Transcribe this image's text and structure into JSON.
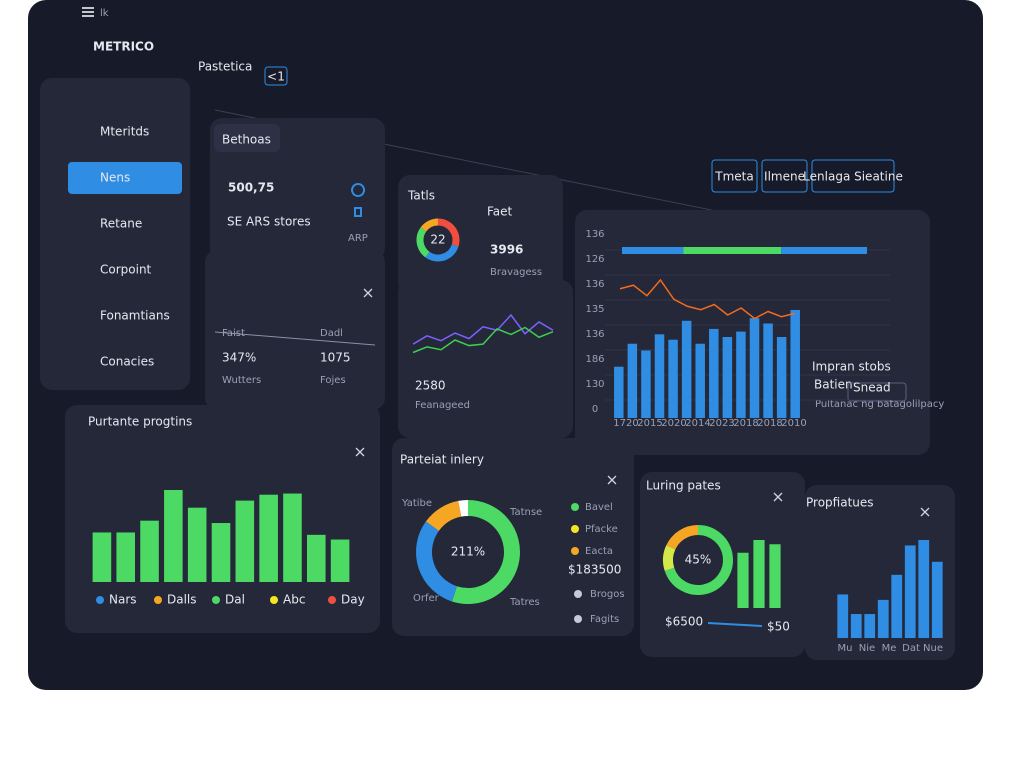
{
  "menu": "lk",
  "brand": "METRICO",
  "tab": "Pastetica",
  "badge": "<1",
  "sidebar": {
    "items": [
      "Mteritds",
      "Nens",
      "Retane",
      "Corpoint",
      "Fonamtians",
      "Conacies"
    ],
    "active": 1
  },
  "buttons": [
    "Tmeta",
    "Ilmene",
    "Lenlaga Sieatine"
  ],
  "card_sales": {
    "tab": "Bethoas",
    "value": "500,75",
    "sub": "SE ARS stores",
    "icon_label": "ARP"
  },
  "card_stats": {
    "items": [
      {
        "label": "Faist",
        "value": "347%",
        "sub": "Wutters"
      },
      {
        "label": "Dadl",
        "value": "1075",
        "sub": "Fojes"
      }
    ]
  },
  "card_totals": {
    "title": "Tatls",
    "title2": "Faet",
    "value": "3996",
    "sub": "Bravagess"
  },
  "card_trend": {
    "value": "2580",
    "sub": "Feanageed"
  },
  "card_main": {
    "title": "Impran stobs",
    "label": "Batien",
    "input": "Snead",
    "note": "Pultanac ng batagolilpacy"
  },
  "card_progress": {
    "title": "Purtante progtins"
  },
  "card_inventory": {
    "title": "Parteiat inlery",
    "amount": "$183500",
    "extra": [
      "Brogos",
      "Fagits"
    ]
  },
  "card_rates": {
    "title": "Luring pates",
    "left": "$6500",
    "right": "$50"
  },
  "card_profiles": {
    "title": "Propfiatues"
  },
  "chart_data": [
    {
      "type": "donut",
      "center": "22",
      "values": [
        30,
        30,
        25,
        15
      ],
      "colors": [
        "#f04e3e",
        "#2f8de4",
        "#4cd964",
        "#f5a623"
      ]
    },
    {
      "type": "line",
      "series": [
        {
          "color": "#7b61ff",
          "values": [
            30,
            42,
            35,
            46,
            38,
            55,
            50,
            72,
            45,
            62,
            50
          ]
        },
        {
          "color": "#3ccf4e",
          "values": [
            18,
            26,
            22,
            36,
            28,
            30,
            52,
            44,
            54,
            40,
            48
          ]
        }
      ]
    },
    {
      "type": "bar",
      "color": "#2f8de4",
      "values": [
        38,
        55,
        50,
        62,
        58,
        72,
        55,
        66,
        60,
        64,
        74,
        70,
        60,
        80
      ],
      "y_labels": [
        "136",
        "126",
        "136",
        "135",
        "136",
        "186",
        "130",
        "0"
      ],
      "x_labels": [
        "1720",
        "2015",
        "2020",
        "2014",
        "2023",
        "2018",
        "2018",
        "2010"
      ],
      "line": {
        "color": "#f26b1d",
        "values": [
          70,
          74,
          62,
          80,
          58,
          50,
          46,
          52,
          40,
          48,
          36,
          44,
          38,
          42
        ]
      },
      "segments": [
        {
          "color": "#2f8de4",
          "value": 25
        },
        {
          "color": "#4cd964",
          "value": 40
        },
        {
          "color": "#2f8de4",
          "value": 35
        }
      ]
    },
    {
      "type": "bar",
      "color": "#4cd964",
      "values": [
        42,
        42,
        52,
        78,
        63,
        50,
        69,
        74,
        75,
        40,
        36
      ],
      "legend": [
        {
          "name": "Nars",
          "color": "#2f8de4"
        },
        {
          "name": "Dalls",
          "color": "#f5a623"
        },
        {
          "name": "Dal",
          "color": "#4cd964"
        },
        {
          "name": "Abc",
          "color": "#f5e623"
        },
        {
          "name": "Day",
          "color": "#f04e3e"
        }
      ]
    },
    {
      "type": "donut",
      "center": "211%",
      "values": [
        55,
        30,
        12,
        3
      ],
      "colors": [
        "#4cd964",
        "#2f8de4",
        "#f5a623",
        "#ffffff"
      ],
      "labels": [
        "Yatibe",
        "Tatnse",
        "Orfer",
        "Tatres"
      ],
      "legend": [
        {
          "name": "Bavel",
          "color": "#4cd964"
        },
        {
          "name": "Pfacke",
          "color": "#f5e623"
        },
        {
          "name": "Eacta",
          "color": "#f5a623"
        }
      ]
    },
    {
      "type": "donut",
      "center": "45%",
      "values": [
        70,
        12,
        18
      ],
      "colors": [
        "#4cd964",
        "#d4e84a",
        "#f5a623"
      ],
      "bars": [
        65,
        80,
        75
      ],
      "bar_color": "#4cd964"
    },
    {
      "type": "bar",
      "color": "#2f8de4",
      "values": [
        40,
        22,
        22,
        35,
        58,
        85,
        90,
        70
      ],
      "x_labels": [
        "Mu",
        "Nie",
        "Me",
        "Dat",
        "Nue"
      ]
    }
  ]
}
